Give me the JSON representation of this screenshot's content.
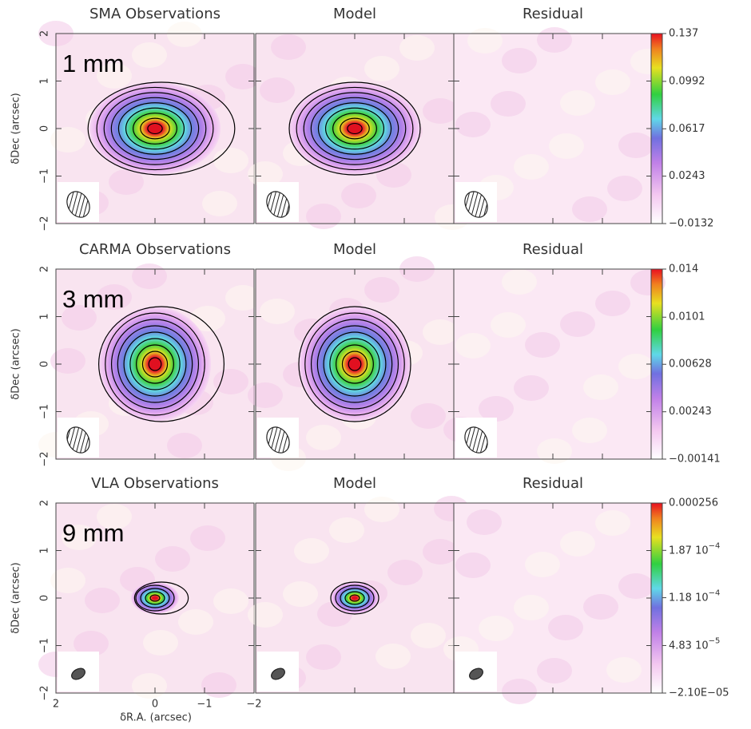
{
  "figure": {
    "axes": {
      "ylabel": "δDec (arcsec)",
      "xlabel": "δR.A. (arcsec)",
      "ylim": [
        -2,
        2
      ],
      "yticks": [
        2,
        1,
        0,
        {
          "value": -1,
          "label": "−1"
        },
        {
          "value": -2,
          "label": "−2"
        }
      ],
      "xlim": [
        2,
        -2
      ],
      "xticks": [
        2,
        0,
        {
          "value": -1,
          "label": "−1"
        },
        {
          "value": -2,
          "label": "−2"
        }
      ]
    },
    "rows": [
      {
        "titles": [
          "SMA Observations",
          "Model",
          "Residual"
        ],
        "band": "1 mm",
        "colorbar": {
          "lim": [
            -0.0132,
            0.137
          ],
          "ticks": [
            0.137,
            0.0992,
            0.0617,
            0.0243,
            {
              "value": -0.0132,
              "label": "−0.0132"
            }
          ]
        }
      },
      {
        "titles": [
          "CARMA Observations",
          "Model",
          "Residual"
        ],
        "band": "3 mm",
        "colorbar": {
          "lim": [
            -0.00141,
            0.014
          ],
          "ticks": [
            0.014,
            0.0101,
            0.00628,
            0.00243,
            {
              "value": -0.00141,
              "label": "−0.00141"
            }
          ]
        }
      },
      {
        "titles": [
          "VLA Observations",
          "Model",
          "Residual"
        ],
        "band": "9 mm",
        "colorbar": {
          "lim": [
            -2.1e-05,
            0.000256
          ],
          "ticks": [
            0.000256,
            {
              "value": 0.000187,
              "label": "1.87 10",
              "sup": "−4"
            },
            {
              "value": 0.000118,
              "label": "1.18 10",
              "sup": "−4"
            },
            {
              "value": 4.83e-05,
              "label": "4.83 10",
              "sup": "−5"
            },
            {
              "value": -2.1e-05,
              "label": "−2.10E−05"
            }
          ]
        }
      }
    ]
  }
}
